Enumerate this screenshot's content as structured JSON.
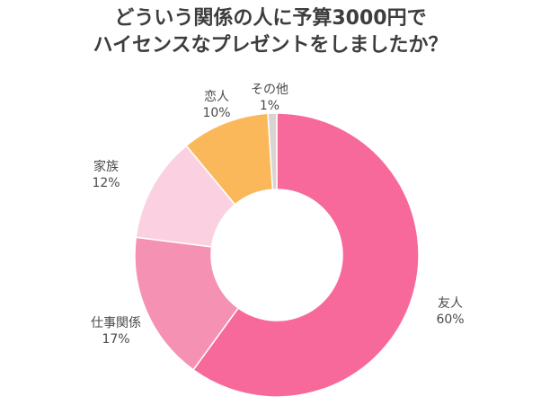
{
  "title_lines": [
    "どういう関係の人に予算3000円で",
    "ハイセンスなプレゼントをしましたか？"
  ],
  "chart_data": {
    "type": "donut",
    "title": "どういう関係の人に予算3000円で ハイセンスなプレゼントをしましたか？",
    "categories": [
      "友人",
      "仕事関係",
      "家族",
      "恋人",
      "その他"
    ],
    "values": [
      60,
      17,
      12,
      10,
      1
    ],
    "value_labels": [
      "60%",
      "17%",
      "12%",
      "10%",
      "1%"
    ],
    "colors": [
      "#f7699a",
      "#f591b2",
      "#fbd1e1",
      "#fbb85a",
      "#d9d3d3"
    ],
    "legend": "none",
    "labels_position": "outside"
  }
}
